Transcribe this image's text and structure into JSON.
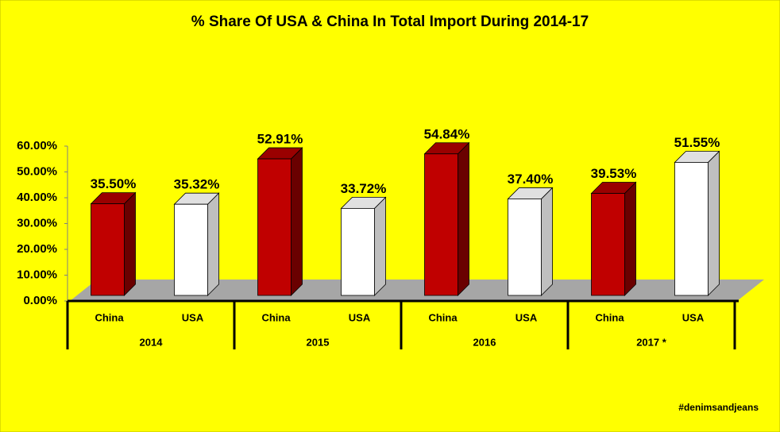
{
  "chart_data": {
    "type": "bar3d",
    "title": "% Share Of USA & China In Total Import During 2014-17",
    "categories": [
      "2014",
      "2015",
      "2016",
      "2017 *"
    ],
    "series": [
      {
        "name": "China",
        "color": "#c00000",
        "values": [
          35.5,
          52.91,
          54.84,
          39.53
        ],
        "value_labels": [
          "35.50%",
          "52.91%",
          "54.84%",
          "39.53%"
        ]
      },
      {
        "name": "USA",
        "color": "#ffffff",
        "values": [
          35.32,
          33.72,
          37.4,
          51.55
        ],
        "value_labels": [
          "35.32%",
          "33.72%",
          "37.40%",
          "51.55%"
        ]
      }
    ],
    "ylim": [
      0,
      60
    ],
    "yticks": [
      {
        "value": 0,
        "label": "0.00%"
      },
      {
        "value": 10,
        "label": "10.00%"
      },
      {
        "value": 20,
        "label": "20.00%"
      },
      {
        "value": 30,
        "label": "30.00%"
      },
      {
        "value": 40,
        "label": "40.00%"
      },
      {
        "value": 50,
        "label": "50.00%"
      },
      {
        "value": 60,
        "label": "60.00%"
      }
    ],
    "grid": false,
    "annotation": "#denimsandjeans"
  }
}
